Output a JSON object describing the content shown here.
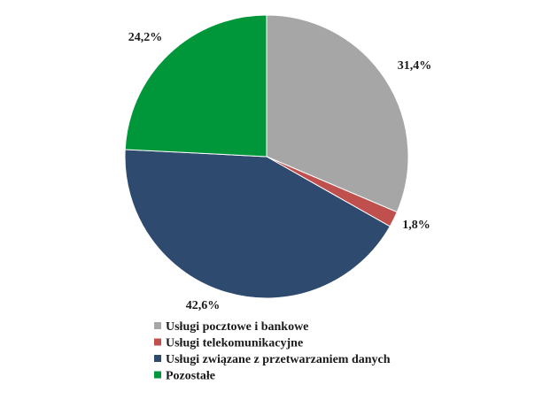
{
  "chart_data": {
    "type": "pie",
    "title": "",
    "legend_position": "bottom",
    "slices": [
      {
        "label": "Usługi pocztowe i bankowe",
        "value": 31.4,
        "value_label": "31,4%",
        "color": "#a6a6a6"
      },
      {
        "label": "Usługi telekomunikacyjne",
        "value": 1.8,
        "value_label": "1,8%",
        "color": "#c0504d"
      },
      {
        "label": "Usługi związane z przetwarzaniem danych",
        "value": 42.6,
        "value_label": "42,6%",
        "color": "#2e4a6e"
      },
      {
        "label": "Pozostałe",
        "value": 24.2,
        "value_label": "24,2%",
        "color": "#00973b"
      }
    ]
  }
}
